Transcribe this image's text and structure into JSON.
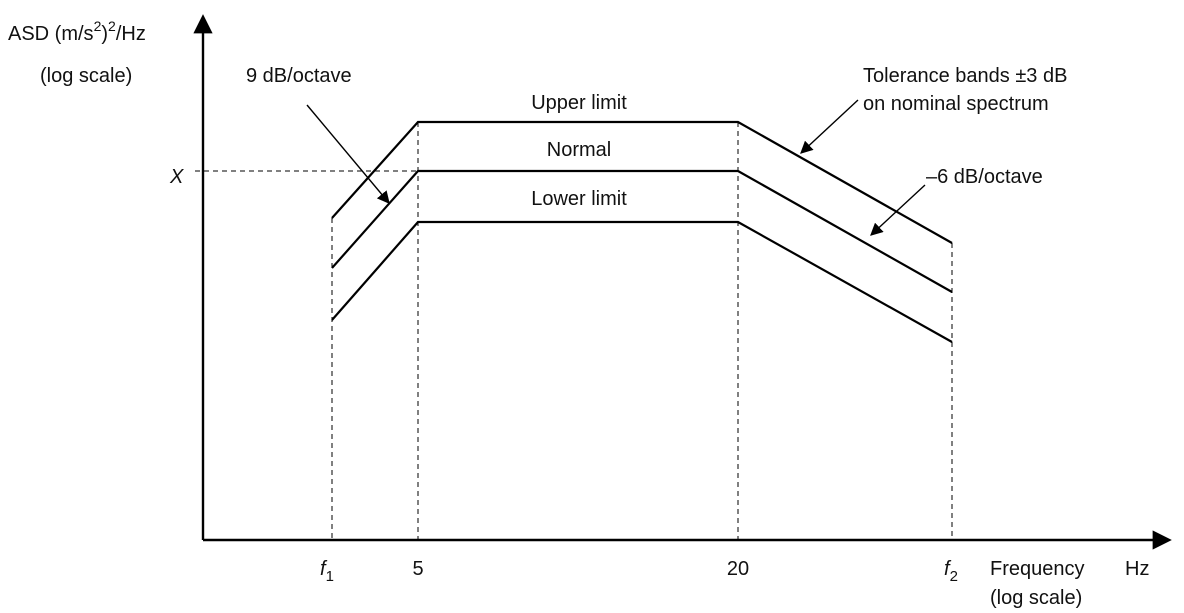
{
  "y_axis": {
    "label_main": "ASD (m/s",
    "label_sup1": "2",
    "label_paren": ")",
    "label_sup2": "2",
    "label_unit": "/Hz",
    "scale_note": "(log scale)"
  },
  "x_axis": {
    "label": "Frequency",
    "unit": "Hz",
    "scale_note": "(log scale)",
    "ticks": {
      "f1": {
        "base": "f",
        "sub": "1"
      },
      "five": "5",
      "twenty": "20",
      "f2": {
        "base": "f",
        "sub": "2"
      }
    }
  },
  "reference_level": "X",
  "curves": {
    "upper": "Upper limit",
    "normal": "Normal",
    "lower": "Lower limit"
  },
  "annotations": {
    "rising_slope": "9 dB/octave",
    "falling_slope": "–6 dB/octave",
    "tolerance_line1": "Tolerance bands ±3 dB",
    "tolerance_line2": "on nominal spectrum"
  }
}
